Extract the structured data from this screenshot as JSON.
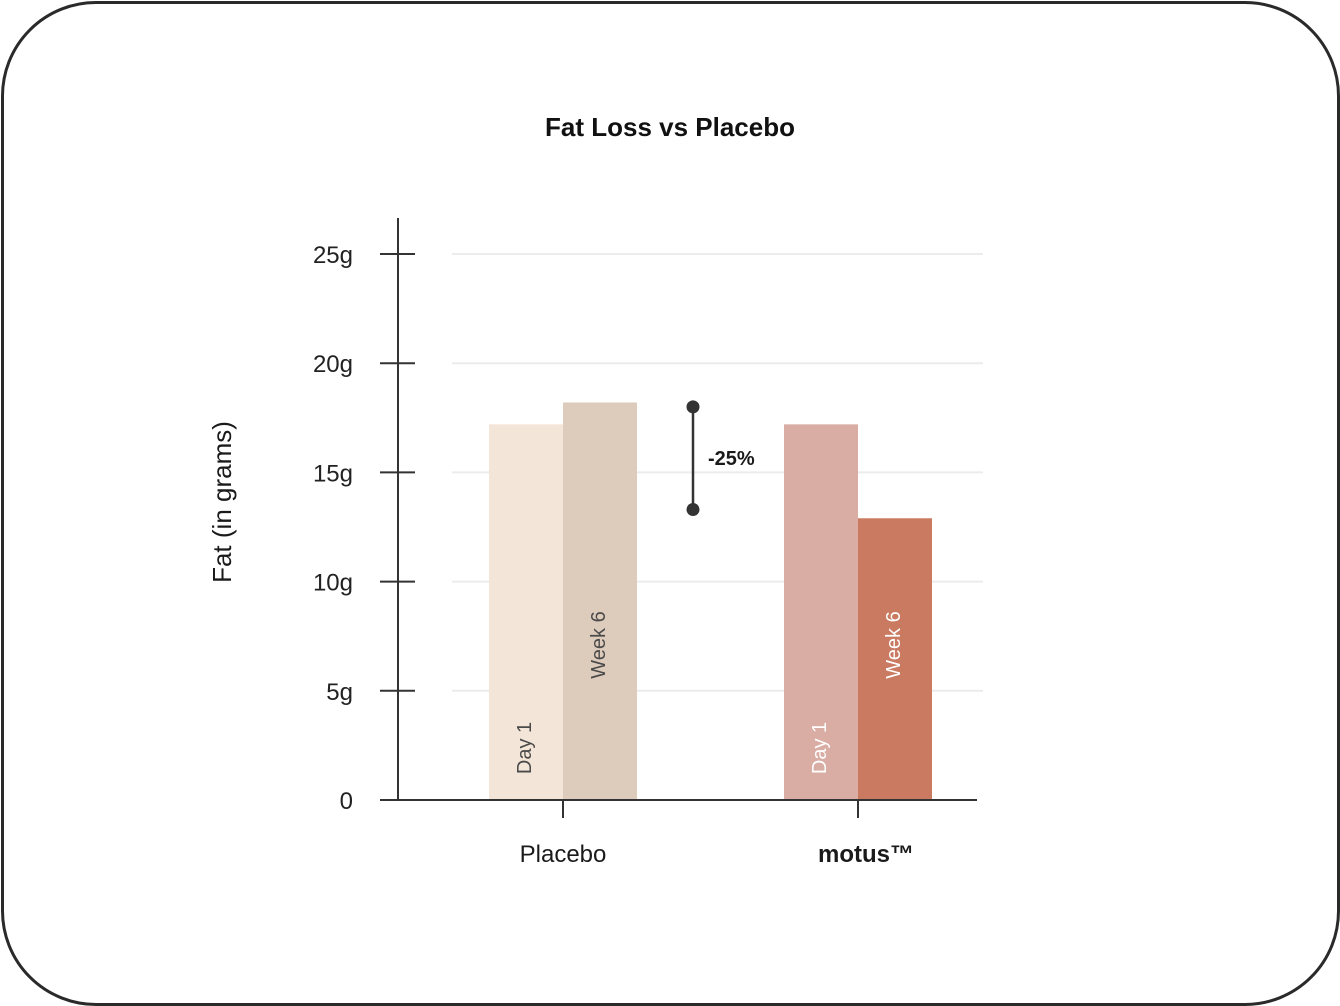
{
  "chart_data": {
    "type": "bar",
    "title": "Fat Loss vs Placebo",
    "ylabel": "Fat (in grams)",
    "xlabel": "",
    "ylim": [
      0,
      25
    ],
    "yticks": [
      {
        "value": 0,
        "label": "0"
      },
      {
        "value": 5,
        "label": "5g"
      },
      {
        "value": 10,
        "label": "10g"
      },
      {
        "value": 15,
        "label": "15g"
      },
      {
        "value": 20,
        "label": "20g"
      },
      {
        "value": 25,
        "label": "25g"
      }
    ],
    "grid": true,
    "categories": [
      {
        "label": "Placebo",
        "bold": false
      },
      {
        "label": "motus™",
        "bold": true
      }
    ],
    "bars": [
      {
        "category": 0,
        "label": "Day 1",
        "value": 17.2,
        "color": "#f3e5d7",
        "text_color": "#4a4a4a"
      },
      {
        "category": 0,
        "label": "Week 6",
        "value": 18.2,
        "color": "#ddcbbb",
        "text_color": "#4a4a4a"
      },
      {
        "category": 1,
        "label": "Day 1",
        "value": 17.2,
        "color": "#d9aca4",
        "text_color": "#ffffff"
      },
      {
        "category": 1,
        "label": "Week 6",
        "value": 12.9,
        "color": "#c97a61",
        "text_color": "#ffffff"
      }
    ],
    "annotation": {
      "label": "-25%",
      "from": 18.0,
      "to": 13.3
    }
  }
}
